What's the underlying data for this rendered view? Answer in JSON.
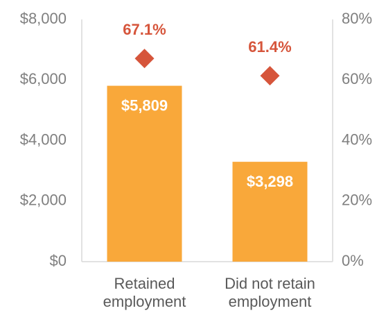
{
  "chart_data": {
    "type": "bar",
    "categories": [
      "Retained employment",
      "Did not retain employment"
    ],
    "series": [
      {
        "name": "Bar",
        "type": "bar",
        "color": "#f9a83a",
        "values": [
          5809,
          3298
        ],
        "value_labels": [
          "$5,809",
          "$3,298"
        ]
      },
      {
        "name": "Rate",
        "type": "scatter",
        "axis": "y2",
        "color": "#d6553b",
        "values": [
          67.1,
          61.4
        ],
        "value_labels": [
          "67.1%",
          "61.4%"
        ]
      }
    ],
    "ylim": [
      0,
      8000
    ],
    "yticks": [
      {
        "value": 0,
        "label": "$0"
      },
      {
        "value": 2000,
        "label": "$2,000"
      },
      {
        "value": 4000,
        "label": "$4,000"
      },
      {
        "value": 6000,
        "label": "$6,000"
      },
      {
        "value": 8000,
        "label": "$8,000"
      }
    ],
    "y2lim": [
      0,
      80
    ],
    "y2ticks": [
      {
        "value": 0,
        "label": "0%"
      },
      {
        "value": 20,
        "label": "20%"
      },
      {
        "value": 40,
        "label": "40%"
      },
      {
        "value": 60,
        "label": "60%"
      },
      {
        "value": 80,
        "label": "80%"
      }
    ],
    "grid": false
  }
}
